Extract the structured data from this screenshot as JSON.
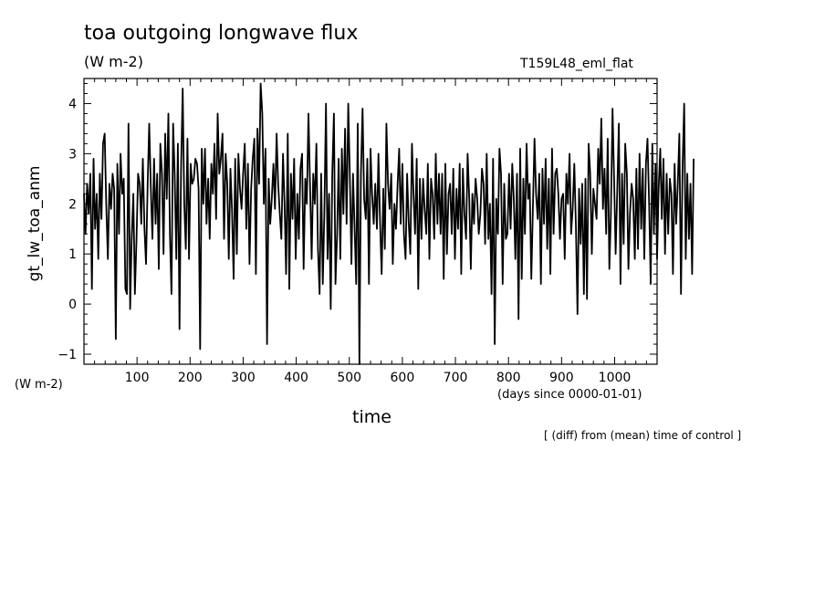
{
  "chart_data": {
    "type": "line",
    "title": "toa outgoing longwave flux",
    "units": "(W m-2)",
    "run_label": "T159L48_eml_flat",
    "ylabel": "gt_lw_toa_anm",
    "y_units": "(W m-2)",
    "xlabel": "time",
    "x_units": "(days since 0000-01-01)",
    "note": "[ (diff) from (mean) time of control ]",
    "xlim": [
      0,
      1080
    ],
    "ylim": [
      -1.2,
      4.5
    ],
    "x_ticks": [
      100,
      200,
      300,
      400,
      500,
      600,
      700,
      800,
      900,
      1000
    ],
    "y_ticks": [
      -1,
      0,
      1,
      2,
      3,
      4
    ],
    "grid": false,
    "series": [
      {
        "color": "#000000",
        "x_step": 3,
        "x_start": 0,
        "values": [
          2.2,
          1.4,
          2.4,
          1.8,
          2.6,
          0.3,
          2.9,
          1.5,
          2.2,
          0.9,
          2.6,
          1.7,
          3.2,
          3.4,
          2.0,
          0.9,
          2.4,
          1.9,
          2.6,
          2.3,
          -0.7,
          2.8,
          1.4,
          3.0,
          2.2,
          2.5,
          0.3,
          0.2,
          3.6,
          -0.1,
          1.3,
          2.2,
          0.2,
          1.3,
          2.6,
          2.4,
          1.6,
          2.9,
          1.5,
          0.8,
          2.4,
          3.6,
          2.3,
          1.3,
          2.9,
          1.6,
          2.6,
          0.7,
          3.2,
          2.6,
          1.0,
          3.4,
          2.1,
          3.8,
          1.4,
          0.2,
          3.6,
          2.6,
          0.9,
          3.2,
          -0.5,
          2.7,
          4.3,
          2.0,
          1.1,
          3.3,
          0.9,
          2.8,
          2.4,
          2.5,
          2.9,
          2.8,
          2.3,
          -0.9,
          3.1,
          2.0,
          3.1,
          1.6,
          2.5,
          1.3,
          2.8,
          2.2,
          3.2,
          1.7,
          3.8,
          2.6,
          2.9,
          3.4,
          1.3,
          3.0,
          2.4,
          0.9,
          2.7,
          1.9,
          0.5,
          2.9,
          1.0,
          3.0,
          2.3,
          1.9,
          2.6,
          3.2,
          1.5,
          2.8,
          0.8,
          2.3,
          2.9,
          3.3,
          0.6,
          3.5,
          2.4,
          4.4,
          3.8,
          2.0,
          3.1,
          -0.8,
          2.5,
          1.6,
          2.1,
          2.8,
          1.9,
          3.4,
          2.4,
          1.8,
          1.3,
          3.0,
          2.0,
          0.6,
          3.4,
          0.3,
          2.6,
          1.7,
          2.9,
          0.9,
          2.2,
          1.3,
          2.7,
          3.0,
          0.7,
          2.5,
          2.0,
          3.8,
          2.4,
          0.9,
          2.6,
          2.0,
          3.2,
          1.1,
          0.2,
          2.6,
          0.4,
          1.8,
          4.0,
          0.9,
          2.2,
          -0.1,
          2.6,
          3.8,
          0.4,
          1.4,
          2.9,
          0.9,
          3.1,
          1.8,
          3.5,
          1.6,
          4.0,
          2.6,
          0.8,
          2.6,
          1.5,
          0.4,
          3.6,
          -1.2,
          2.6,
          3.9,
          2.1,
          1.7,
          2.9,
          0.4,
          3.1,
          2.2,
          1.6,
          2.4,
          1.5,
          3.0,
          1.6,
          0.6,
          2.3,
          1.1,
          3.6,
          2.4,
          1.9,
          2.6,
          0.8,
          2.0,
          1.5,
          2.4,
          3.1,
          1.6,
          2.8,
          1.4,
          0.9,
          2.6,
          1.6,
          1.0,
          3.2,
          2.2,
          1.4,
          2.9,
          0.3,
          2.5,
          1.3,
          2.5,
          1.9,
          1.4,
          2.8,
          0.9,
          2.5,
          2.2,
          1.3,
          3.0,
          1.6,
          2.6,
          1.4,
          2.6,
          0.5,
          2.8,
          1.0,
          2.2,
          2.4,
          1.4,
          2.7,
          0.9,
          2.3,
          1.5,
          2.8,
          0.6,
          2.7,
          1.8,
          1.3,
          3.0,
          2.1,
          0.7,
          2.2,
          1.6,
          2.5,
          2.1,
          1.4,
          1.8,
          2.7,
          2.4,
          1.2,
          3.0,
          1.3,
          2.0,
          0.2,
          2.9,
          -0.8,
          2.1,
          1.4,
          3.1,
          2.6,
          0.4,
          2.4,
          1.3,
          1.4,
          2.6,
          1.5,
          2.8,
          2.1,
          0.9,
          2.6,
          -0.3,
          3.1,
          0.5,
          2.5,
          1.4,
          3.2,
          2.1,
          2.4,
          0.5,
          1.9,
          3.3,
          2.2,
          1.7,
          2.6,
          0.4,
          2.7,
          1.6,
          2.9,
          1.1,
          2.5,
          0.6,
          3.1,
          1.4,
          2.6,
          2.7,
          2.2,
          1.3,
          2.1,
          2.2,
          0.9,
          2.6,
          2.0,
          3.0,
          1.4,
          1.9,
          2.8,
          1.6,
          -0.2,
          2.3,
          1.2,
          2.4,
          0.2,
          2.5,
          0.1,
          3.2,
          2.6,
          1.0,
          2.3,
          2.0,
          1.7,
          3.1,
          2.4,
          3.7,
          1.9,
          2.7,
          1.4,
          3.3,
          0.7,
          1.8,
          3.9,
          2.5,
          1.0,
          2.3,
          3.6,
          0.4,
          2.6,
          1.2,
          3.2,
          2.6,
          0.7,
          1.8,
          2.4,
          2.1,
          0.9,
          2.7,
          1.1,
          3.0,
          1.5,
          2.7,
          0.9,
          2.8,
          3.3,
          2.0,
          0.4,
          3.2,
          1.4,
          2.8,
          0.9,
          2.3,
          3.1,
          1.7,
          2.9,
          1.0,
          2.6,
          1.4,
          2.5,
          2.2,
          0.6,
          2.8,
          1.6,
          2.4,
          3.4,
          0.2,
          2.7,
          4.0,
          0.9,
          2.6,
          1.3,
          2.4,
          0.6,
          2.9
        ]
      }
    ]
  }
}
